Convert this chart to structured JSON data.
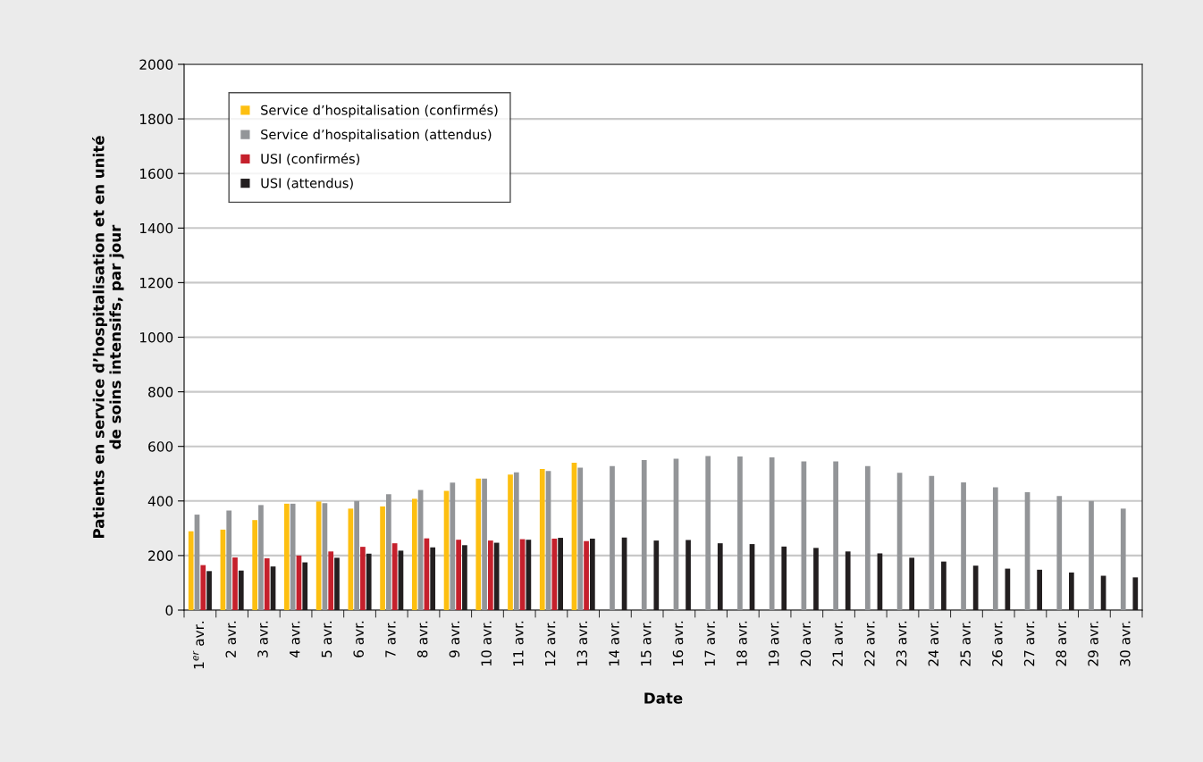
{
  "chart_data": {
    "type": "bar",
    "xlabel": "Date",
    "ylabel": "Patients en service d’hospitalisation et en unité\nde soins intensifs, par jour",
    "categories": [
      "1$^{er}$ avr.",
      "2 avr.",
      "3 avr.",
      "4 avr.",
      "5 avr.",
      "6 avr.",
      "7 avr.",
      "8 avr.",
      "9 avr.",
      "10 avr.",
      "11 avr.",
      "12 avr.",
      "13 avr.",
      "14 avr.",
      "15 avr.",
      "16 avr.",
      "17 avr.",
      "18 avr.",
      "19 avr.",
      "20 avr.",
      "21 avr.",
      "22 avr.",
      "23 avr.",
      "24 avr.",
      "25 avr.",
      "26 avr.",
      "27 avr.",
      "28 avr.",
      "29 avr.",
      "30 avr."
    ],
    "series": [
      {
        "name": "Service d’hospitalisation (confirmés)",
        "color": "#fdbf11",
        "values": [
          289,
          295,
          330,
          390,
          398,
          372,
          380,
          408,
          437,
          482,
          497,
          517,
          540,
          null,
          null,
          null,
          null,
          null,
          null,
          null,
          null,
          null,
          null,
          null,
          null,
          null,
          null,
          null,
          null,
          null
        ]
      },
      {
        "name": "Service d’hospitalisation (attendus)",
        "color": "#939598",
        "values": [
          350,
          365,
          385,
          390,
          392,
          400,
          425,
          440,
          467,
          482,
          505,
          510,
          522,
          528,
          550,
          555,
          565,
          563,
          560,
          545,
          545,
          528,
          503,
          492,
          468,
          450,
          432,
          418,
          400,
          372
        ]
      },
      {
        "name": "USI (confirmés)",
        "color": "#c5202c",
        "values": [
          165,
          193,
          190,
          200,
          215,
          232,
          245,
          263,
          258,
          255,
          260,
          262,
          253,
          null,
          null,
          null,
          null,
          null,
          null,
          null,
          null,
          null,
          null,
          null,
          null,
          null,
          null,
          null,
          null,
          null
        ]
      },
      {
        "name": "USI (attendus)",
        "color": "#231f20",
        "values": [
          143,
          145,
          160,
          175,
          192,
          207,
          218,
          230,
          238,
          247,
          258,
          265,
          262,
          266,
          255,
          257,
          245,
          242,
          233,
          228,
          215,
          208,
          192,
          178,
          163,
          152,
          148,
          138,
          126,
          120
        ]
      }
    ],
    "ylim": [
      0,
      2000
    ],
    "yticks": [
      0,
      200,
      400,
      600,
      800,
      1000,
      1200,
      1400,
      1600,
      1800,
      2000
    ],
    "grid": "y",
    "legend": "top left"
  }
}
